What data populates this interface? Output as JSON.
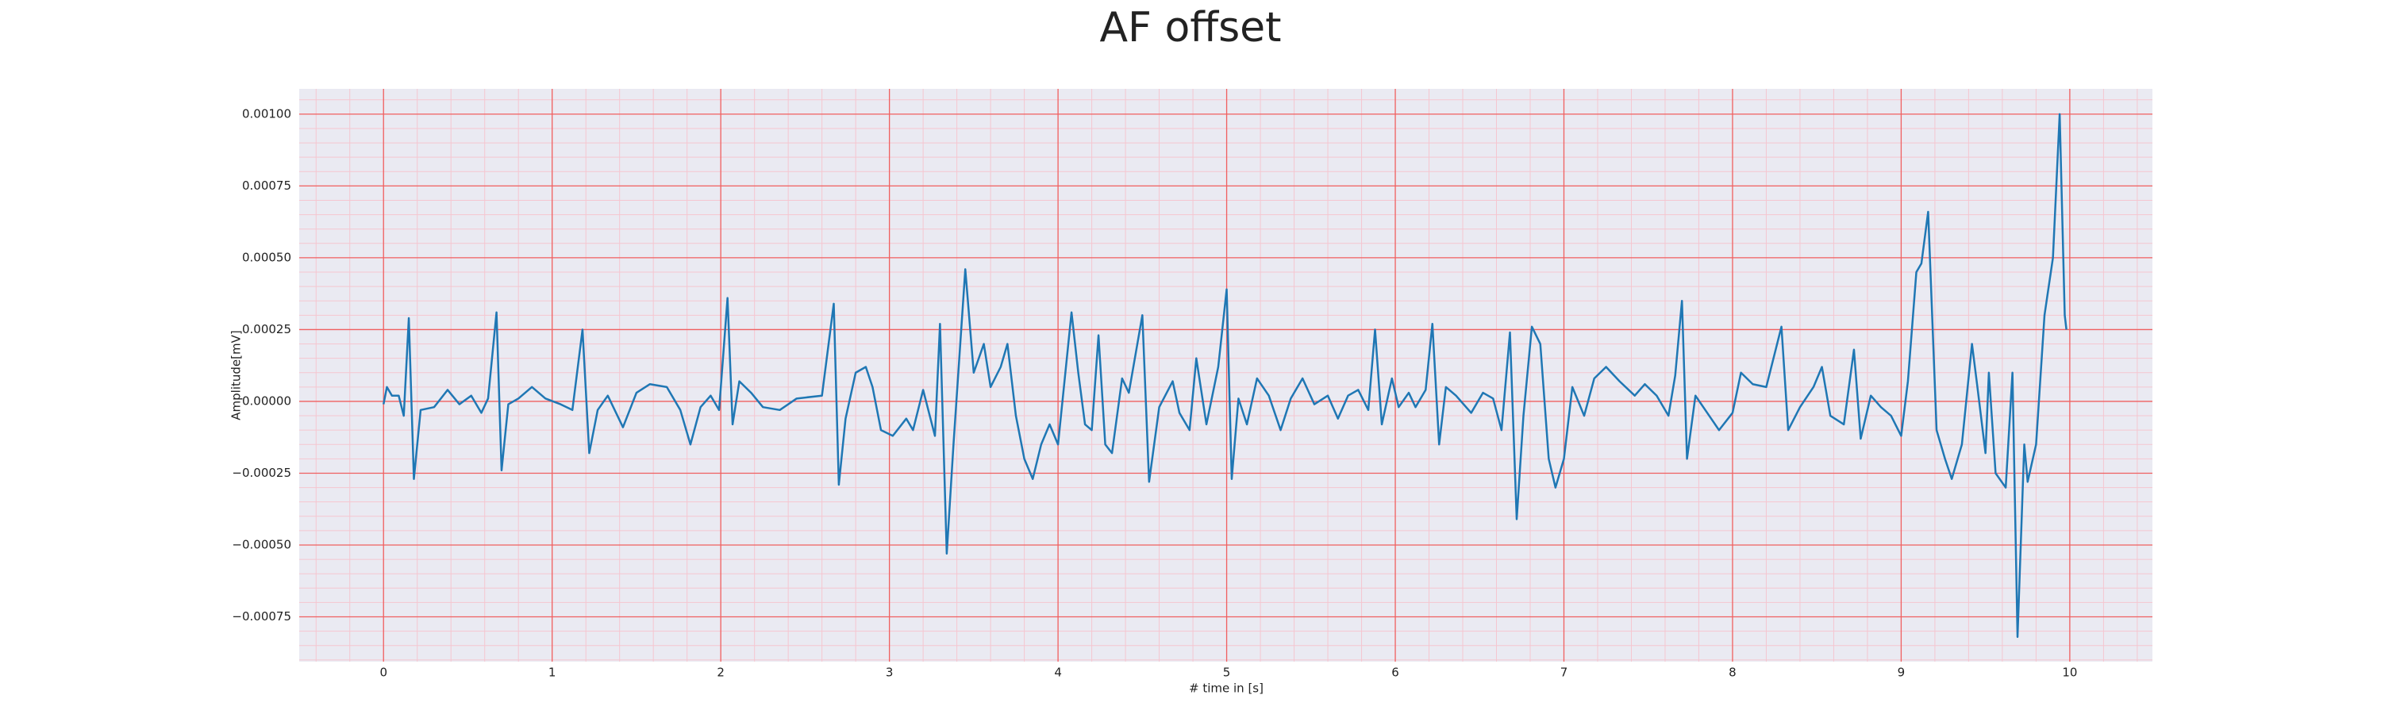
{
  "chart_data": {
    "type": "line",
    "title": "AF offset",
    "xlabel": "# time in [s]",
    "ylabel": "Amplitude[mV]",
    "color": "#1f77b4",
    "grid": true,
    "grid_color": "#f06060",
    "minor_grid": true,
    "minor_grid_color": "#f5c6d0",
    "facecolor": "#eaeaf2",
    "xlim": [
      -0.5,
      10.49
    ],
    "ylim": [
      -0.000906,
      0.001088
    ],
    "xticks": [
      0,
      1,
      2,
      3,
      4,
      5,
      6,
      7,
      8,
      9,
      10
    ],
    "yticks": [
      {
        "value": -0.00075,
        "label": "−0.00075"
      },
      {
        "value": -0.0005,
        "label": "−0.00050"
      },
      {
        "value": -0.00025,
        "label": "−0.00025"
      },
      {
        "value": 0,
        "label": "0.00000"
      },
      {
        "value": 0.00025,
        "label": "0.00025"
      },
      {
        "value": 0.0005,
        "label": "0.00050"
      },
      {
        "value": 0.00075,
        "label": "0.00075"
      },
      {
        "value": 0.001,
        "label": "0.00100"
      }
    ],
    "x": [
      0.0,
      0.02,
      0.05,
      0.09,
      0.12,
      0.15,
      0.18,
      0.22,
      0.3,
      0.38,
      0.45,
      0.52,
      0.58,
      0.62,
      0.67,
      0.7,
      0.74,
      0.8,
      0.88,
      0.96,
      1.05,
      1.12,
      1.18,
      1.22,
      1.27,
      1.33,
      1.42,
      1.5,
      1.58,
      1.68,
      1.76,
      1.82,
      1.88,
      1.94,
      1.99,
      2.04,
      2.07,
      2.11,
      2.18,
      2.25,
      2.35,
      2.45,
      2.6,
      2.67,
      2.7,
      2.74,
      2.8,
      2.86,
      2.9,
      2.95,
      3.02,
      3.1,
      3.14,
      3.2,
      3.27,
      3.3,
      3.34,
      3.38,
      3.45,
      3.5,
      3.56,
      3.6,
      3.66,
      3.7,
      3.75,
      3.8,
      3.85,
      3.9,
      3.95,
      4.0,
      4.08,
      4.12,
      4.16,
      4.2,
      4.24,
      4.28,
      4.32,
      4.38,
      4.42,
      4.5,
      4.54,
      4.6,
      4.68,
      4.72,
      4.78,
      4.82,
      4.88,
      4.95,
      5.0,
      5.03,
      5.07,
      5.12,
      5.18,
      5.25,
      5.32,
      5.38,
      5.45,
      5.52,
      5.6,
      5.66,
      5.72,
      5.78,
      5.84,
      5.88,
      5.92,
      5.98,
      6.02,
      6.08,
      6.12,
      6.18,
      6.22,
      6.26,
      6.3,
      6.36,
      6.45,
      6.52,
      6.58,
      6.63,
      6.68,
      6.72,
      6.76,
      6.81,
      6.86,
      6.91,
      6.95,
      7.0,
      7.05,
      7.12,
      7.18,
      7.25,
      7.33,
      7.42,
      7.48,
      7.55,
      7.62,
      7.66,
      7.7,
      7.73,
      7.78,
      7.85,
      7.92,
      8.0,
      8.05,
      8.12,
      8.2,
      8.29,
      8.33,
      8.4,
      8.48,
      8.53,
      8.58,
      8.66,
      8.72,
      8.76,
      8.82,
      8.88,
      8.94,
      9.0,
      9.04,
      9.09,
      9.12,
      9.16,
      9.21,
      9.26,
      9.3,
      9.36,
      9.42,
      9.45,
      9.5,
      9.52,
      9.56,
      9.62,
      9.66,
      9.69,
      9.73,
      9.75,
      9.8,
      9.85,
      9.9,
      9.94,
      9.97,
      9.98
    ],
    "values": [
      -1e-05,
      5e-05,
      2e-05,
      2e-05,
      -5e-05,
      0.00029,
      -0.00027,
      -3e-05,
      -2e-05,
      4e-05,
      -1e-05,
      2e-05,
      -4e-05,
      1e-05,
      0.00031,
      -0.00024,
      -1e-05,
      1e-05,
      5e-05,
      1e-05,
      -1e-05,
      -3e-05,
      0.00025,
      -0.00018,
      -3e-05,
      2e-05,
      -9e-05,
      3e-05,
      6e-05,
      5e-05,
      -3e-05,
      -0.00015,
      -2e-05,
      2e-05,
      -3e-05,
      0.00036,
      -8e-05,
      7e-05,
      3e-05,
      -2e-05,
      -3e-05,
      1e-05,
      2e-05,
      0.00034,
      -0.00029,
      -6e-05,
      0.0001,
      0.00012,
      5e-05,
      -0.0001,
      -0.00012,
      -6e-05,
      -0.0001,
      4e-05,
      -0.00012,
      0.00027,
      -0.00053,
      -0.00015,
      0.00046,
      0.0001,
      0.0002,
      5e-05,
      0.00012,
      0.0002,
      -5e-05,
      -0.0002,
      -0.00027,
      -0.00015,
      -8e-05,
      -0.00015,
      0.00031,
      0.0001,
      -8e-05,
      -0.0001,
      0.00023,
      -0.00015,
      -0.00018,
      8e-05,
      3e-05,
      0.0003,
      -0.00028,
      -2e-05,
      7e-05,
      -4e-05,
      -0.0001,
      0.00015,
      -8e-05,
      0.00012,
      0.00039,
      -0.00027,
      1e-05,
      -8e-05,
      8e-05,
      2e-05,
      -0.0001,
      1e-05,
      8e-05,
      -1e-05,
      2e-05,
      -6e-05,
      2e-05,
      4e-05,
      -3e-05,
      0.00025,
      -8e-05,
      8e-05,
      -2e-05,
      3e-05,
      -2e-05,
      4e-05,
      0.00027,
      -0.00015,
      5e-05,
      2e-05,
      -4e-05,
      3e-05,
      1e-05,
      -0.0001,
      0.00024,
      -0.00041,
      -5e-05,
      0.00026,
      0.0002,
      -0.0002,
      -0.0003,
      -0.0002,
      5e-05,
      -5e-05,
      8e-05,
      0.00012,
      7e-05,
      2e-05,
      6e-05,
      2e-05,
      -5e-05,
      9e-05,
      0.00035,
      -0.0002,
      2e-05,
      -4e-05,
      -0.0001,
      -4e-05,
      0.0001,
      6e-05,
      5e-05,
      0.00026,
      -0.0001,
      -2e-05,
      5e-05,
      0.00012,
      -5e-05,
      -8e-05,
      0.00018,
      -0.00013,
      2e-05,
      -2e-05,
      -5e-05,
      -0.00012,
      7e-05,
      0.00045,
      0.00048,
      0.00066,
      -0.0001,
      -0.0002,
      -0.00027,
      -0.00015,
      0.0002,
      6e-05,
      -0.00018,
      0.0001,
      -0.00025,
      -0.0003,
      0.0001,
      -0.00082,
      -0.00015,
      -0.00028,
      -0.00015,
      0.0003,
      0.0005,
      0.001,
      0.0003,
      0.00025
    ]
  }
}
